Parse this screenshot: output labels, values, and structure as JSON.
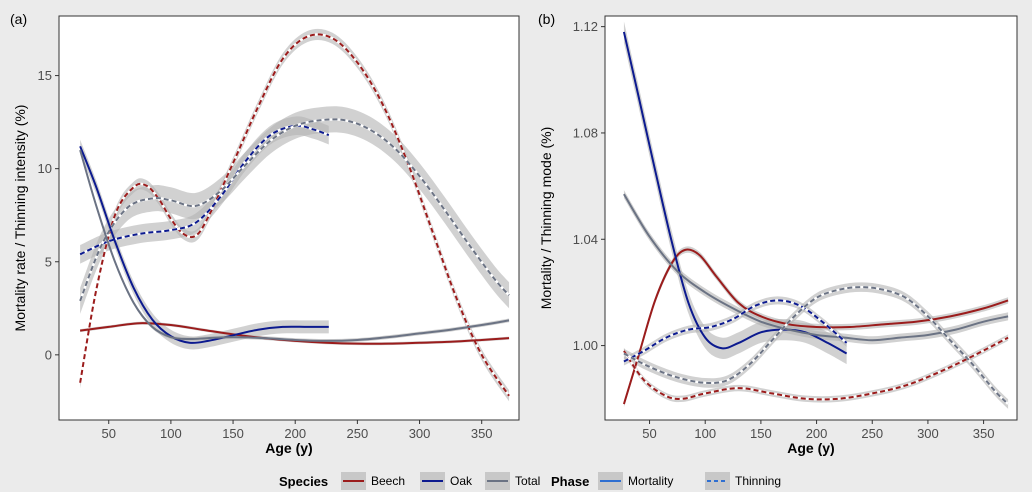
{
  "figure": {
    "legend": {
      "species_title": "Species",
      "species": [
        {
          "label": "Beech",
          "color": "#9b1c1c"
        },
        {
          "label": "Oak",
          "color": "#0c1a8f"
        },
        {
          "label": "Total",
          "color": "#6b7384"
        }
      ],
      "phase_title": "Phase",
      "phases": [
        {
          "label": "Mortality",
          "style": "solid",
          "color": "#2f6fd1"
        },
        {
          "label": "Thinning",
          "style": "dashed",
          "color": "#2f6fd1"
        }
      ]
    }
  },
  "chart_data": [
    {
      "panel_label": "(a)",
      "type": "line",
      "xlabel": "Age (y)",
      "ylabel": "Mortality rate / Thinning intensity (%)",
      "xlim": [
        10,
        380
      ],
      "ylim": [
        -3.5,
        18.2
      ],
      "xticks": [
        50,
        100,
        150,
        200,
        250,
        300,
        350
      ],
      "yticks": [
        0,
        5,
        10,
        15
      ],
      "ytick_labels": [
        "0",
        "5",
        "10",
        "15"
      ],
      "grid": false,
      "series": [
        {
          "species": "Beech",
          "phase": "Thinning",
          "x": [
            27,
            40,
            55,
            70,
            80,
            90,
            100,
            110,
            120,
            130,
            150,
            170,
            190,
            210,
            230,
            250,
            270,
            290,
            310,
            330,
            350,
            372
          ],
          "y": [
            -1.5,
            3.5,
            7.5,
            9.0,
            9.1,
            8.4,
            7.3,
            6.5,
            6.4,
            7.4,
            10.3,
            13.3,
            15.9,
            17.1,
            17.0,
            15.7,
            13.5,
            10.4,
            6.7,
            3.0,
            0.0,
            -2.2
          ],
          "band": 0.3
        },
        {
          "species": "Oak",
          "phase": "Thinning",
          "x": [
            27,
            50,
            75,
            100,
            120,
            140,
            160,
            180,
            200,
            215,
            227
          ],
          "y": [
            5.4,
            6.1,
            6.5,
            6.7,
            7.1,
            8.5,
            10.4,
            11.8,
            12.3,
            12.1,
            11.8
          ],
          "band": 0.5
        },
        {
          "species": "Total",
          "phase": "Thinning",
          "x": [
            27,
            45,
            65,
            85,
            100,
            120,
            140,
            160,
            180,
            200,
            220,
            240,
            260,
            280,
            300,
            320,
            340,
            360,
            372
          ],
          "y": [
            2.9,
            6.0,
            7.9,
            8.4,
            8.3,
            8.0,
            8.8,
            10.2,
            11.5,
            12.3,
            12.6,
            12.6,
            12.1,
            11.1,
            9.6,
            7.8,
            5.9,
            4.1,
            3.2
          ],
          "band": 0.7
        },
        {
          "species": "Beech",
          "phase": "Mortality",
          "x": [
            27,
            50,
            75,
            100,
            125,
            150,
            175,
            200,
            225,
            250,
            275,
            300,
            325,
            350,
            372
          ],
          "y": [
            1.3,
            1.5,
            1.7,
            1.6,
            1.35,
            1.1,
            0.9,
            0.75,
            0.65,
            0.6,
            0.6,
            0.65,
            0.7,
            0.8,
            0.9
          ],
          "band": 0.08
        },
        {
          "species": "Oak",
          "phase": "Mortality",
          "x": [
            27,
            40,
            55,
            70,
            85,
            100,
            115,
            130,
            150,
            170,
            190,
            210,
            227
          ],
          "y": [
            11.2,
            9.0,
            6.1,
            3.6,
            1.9,
            1.0,
            0.65,
            0.75,
            1.05,
            1.35,
            1.5,
            1.5,
            1.5
          ],
          "band": 0.35
        },
        {
          "species": "Total",
          "phase": "Mortality",
          "x": [
            27,
            40,
            55,
            70,
            85,
            100,
            115,
            130,
            150,
            175,
            200,
            225,
            250,
            275,
            300,
            325,
            350,
            372
          ],
          "y": [
            11.0,
            8.0,
            5.0,
            2.8,
            1.5,
            0.95,
            0.85,
            0.9,
            0.95,
            0.9,
            0.8,
            0.75,
            0.8,
            0.95,
            1.15,
            1.35,
            1.6,
            1.85
          ],
          "band": 0.1
        }
      ]
    },
    {
      "panel_label": "(b)",
      "type": "line",
      "xlabel": "Age (y)",
      "ylabel": "Mortality / Thinning mode (%)",
      "xlim": [
        10,
        380
      ],
      "ylim": [
        0.972,
        1.124
      ],
      "xticks": [
        50,
        100,
        150,
        200,
        250,
        300,
        350
      ],
      "yticks": [
        1.0,
        1.04,
        1.08,
        1.12
      ],
      "ytick_labels": [
        "1.00",
        "1.04",
        "1.08",
        "1.12"
      ],
      "grid": false,
      "series": [
        {
          "species": "Beech",
          "phase": "Mortality",
          "x": [
            27,
            40,
            55,
            70,
            82,
            95,
            110,
            130,
            150,
            175,
            200,
            230,
            260,
            290,
            320,
            350,
            372
          ],
          "y": [
            0.978,
            0.996,
            1.017,
            1.031,
            1.036,
            1.034,
            1.026,
            1.016,
            1.011,
            1.008,
            1.007,
            1.007,
            1.008,
            1.009,
            1.011,
            1.014,
            1.017
          ],
          "band": 0.0012
        },
        {
          "species": "Oak",
          "phase": "Mortality",
          "x": [
            27,
            40,
            55,
            70,
            85,
            100,
            115,
            130,
            150,
            170,
            190,
            210,
            227
          ],
          "y": [
            1.118,
            1.094,
            1.066,
            1.039,
            1.016,
            1.003,
            0.999,
            1.001,
            1.005,
            1.006,
            1.005,
            1.001,
            0.997
          ],
          "band": 0.004
        },
        {
          "species": "Total",
          "phase": "Mortality",
          "x": [
            27,
            50,
            75,
            100,
            125,
            150,
            175,
            200,
            225,
            250,
            275,
            300,
            325,
            350,
            372
          ],
          "y": [
            1.057,
            1.041,
            1.028,
            1.02,
            1.014,
            1.009,
            1.006,
            1.004,
            1.003,
            1.002,
            1.003,
            1.004,
            1.006,
            1.009,
            1.011
          ],
          "band": 0.0015
        },
        {
          "species": "Beech",
          "phase": "Thinning",
          "x": [
            27,
            45,
            65,
            80,
            100,
            130,
            160,
            190,
            220,
            250,
            280,
            310,
            340,
            372
          ],
          "y": [
            0.998,
            0.987,
            0.981,
            0.98,
            0.982,
            0.984,
            0.982,
            0.98,
            0.98,
            0.982,
            0.985,
            0.99,
            0.996,
            1.003
          ],
          "band": 0.0012
        },
        {
          "species": "Oak",
          "phase": "Thinning",
          "x": [
            27,
            45,
            65,
            85,
            105,
            125,
            145,
            165,
            185,
            205,
            227
          ],
          "y": [
            0.994,
            0.998,
            1.003,
            1.006,
            1.007,
            1.01,
            1.015,
            1.017,
            1.015,
            1.009,
            1.001
          ],
          "band": 0.0015
        },
        {
          "species": "Total",
          "phase": "Thinning",
          "x": [
            27,
            50,
            75,
            100,
            120,
            140,
            160,
            180,
            200,
            220,
            240,
            260,
            280,
            300,
            320,
            340,
            360,
            372
          ],
          "y": [
            0.997,
            0.992,
            0.988,
            0.986,
            0.987,
            0.993,
            1.002,
            1.011,
            1.018,
            1.021,
            1.022,
            1.021,
            1.018,
            1.011,
            1.002,
            0.993,
            0.983,
            0.978
          ],
          "band": 0.0018
        }
      ]
    }
  ]
}
